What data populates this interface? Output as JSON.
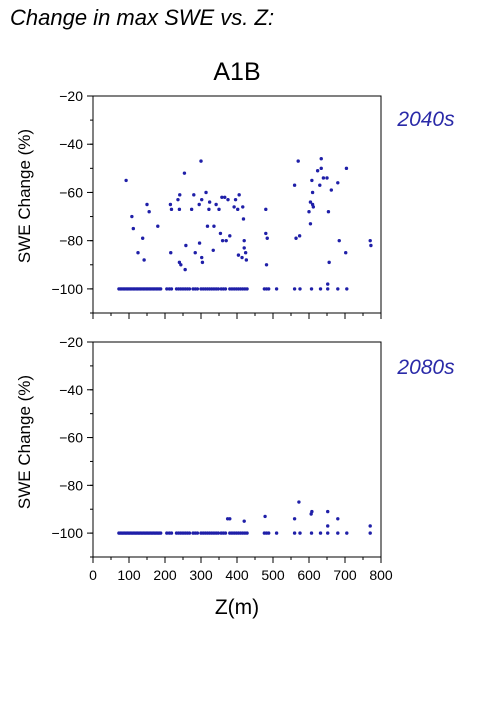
{
  "figure_title": "Change in max SWE vs. Z:",
  "scenario": "A1B",
  "colors": {
    "points": "#1f1fa8",
    "label_blue": "#2a2aa8",
    "axis": "#000000",
    "background": "#ffffff"
  },
  "chart_data": [
    {
      "type": "scatter",
      "panel_label": "2040s",
      "xlabel": "Z(m)",
      "ylabel": "SWE Change (%)",
      "xlim": [
        0,
        800
      ],
      "ylim": [
        -110,
        -20
      ],
      "xticks": [
        0,
        100,
        200,
        300,
        400,
        500,
        600,
        700,
        800
      ],
      "yticks": [
        -100,
        -80,
        -60,
        -40,
        -20
      ],
      "x_tick_labels_shown": false,
      "grid": false,
      "points": [
        [
          72,
          -100
        ],
        [
          76,
          -100
        ],
        [
          80,
          -100
        ],
        [
          84,
          -100
        ],
        [
          88,
          -100
        ],
        [
          92,
          -100
        ],
        [
          96,
          -100
        ],
        [
          100,
          -100
        ],
        [
          104,
          -100
        ],
        [
          108,
          -100
        ],
        [
          112,
          -100
        ],
        [
          116,
          -100
        ],
        [
          120,
          -100
        ],
        [
          124,
          -100
        ],
        [
          128,
          -100
        ],
        [
          132,
          -100
        ],
        [
          136,
          -100
        ],
        [
          140,
          -100
        ],
        [
          144,
          -100
        ],
        [
          148,
          -100
        ],
        [
          152,
          -100
        ],
        [
          156,
          -100
        ],
        [
          160,
          -100
        ],
        [
          164,
          -100
        ],
        [
          168,
          -100
        ],
        [
          172,
          -100
        ],
        [
          176,
          -100
        ],
        [
          180,
          -100
        ],
        [
          184,
          -100
        ],
        [
          188,
          -100
        ],
        [
          205,
          -100
        ],
        [
          212,
          -100
        ],
        [
          218,
          -100
        ],
        [
          232,
          -100
        ],
        [
          238,
          -100
        ],
        [
          244,
          -100
        ],
        [
          250,
          -100
        ],
        [
          256,
          -100
        ],
        [
          262,
          -100
        ],
        [
          268,
          -100
        ],
        [
          278,
          -100
        ],
        [
          284,
          -100
        ],
        [
          290,
          -100
        ],
        [
          300,
          -100
        ],
        [
          306,
          -100
        ],
        [
          312,
          -100
        ],
        [
          318,
          -100
        ],
        [
          324,
          -100
        ],
        [
          330,
          -100
        ],
        [
          336,
          -100
        ],
        [
          342,
          -100
        ],
        [
          348,
          -100
        ],
        [
          356,
          -100
        ],
        [
          362,
          -100
        ],
        [
          368,
          -100
        ],
        [
          380,
          -100
        ],
        [
          386,
          -100
        ],
        [
          392,
          -100
        ],
        [
          398,
          -100
        ],
        [
          404,
          -100
        ],
        [
          410,
          -100
        ],
        [
          416,
          -100
        ],
        [
          422,
          -100
        ],
        [
          428,
          -100
        ],
        [
          476,
          -100
        ],
        [
          482,
          -100
        ],
        [
          488,
          -100
        ],
        [
          510,
          -100
        ],
        [
          560,
          -100
        ],
        [
          575,
          -100
        ],
        [
          607,
          -100
        ],
        [
          632,
          -100
        ],
        [
          652,
          -100
        ],
        [
          680,
          -100
        ],
        [
          705,
          -100
        ],
        [
          92,
          -55
        ],
        [
          108,
          -70
        ],
        [
          112,
          -75
        ],
        [
          125,
          -85
        ],
        [
          138,
          -79
        ],
        [
          142,
          -88
        ],
        [
          150,
          -65
        ],
        [
          156,
          -68
        ],
        [
          180,
          -74
        ],
        [
          215,
          -65
        ],
        [
          218,
          -67
        ],
        [
          216,
          -85
        ],
        [
          236,
          -63
        ],
        [
          241,
          -61
        ],
        [
          240,
          -67
        ],
        [
          240,
          -89
        ],
        [
          244,
          -90
        ],
        [
          254,
          -52
        ],
        [
          258,
          -82
        ],
        [
          256,
          -92
        ],
        [
          274,
          -67
        ],
        [
          280,
          -61
        ],
        [
          284,
          -85
        ],
        [
          295,
          -65
        ],
        [
          296,
          -81
        ],
        [
          300,
          -47
        ],
        [
          302,
          -63
        ],
        [
          302,
          -87
        ],
        [
          304,
          -89
        ],
        [
          314,
          -60
        ],
        [
          318,
          -74
        ],
        [
          322,
          -67
        ],
        [
          324,
          -64
        ],
        [
          334,
          -84
        ],
        [
          336,
          -74
        ],
        [
          342,
          -65
        ],
        [
          350,
          -67
        ],
        [
          354,
          -77
        ],
        [
          358,
          -62
        ],
        [
          360,
          -80
        ],
        [
          366,
          -62
        ],
        [
          370,
          -80
        ],
        [
          375,
          -63
        ],
        [
          380,
          -78
        ],
        [
          392,
          -66
        ],
        [
          396,
          -63
        ],
        [
          402,
          -67
        ],
        [
          404,
          -86
        ],
        [
          406,
          -61
        ],
        [
          414,
          -87
        ],
        [
          416,
          -66
        ],
        [
          418,
          -71
        ],
        [
          420,
          -80
        ],
        [
          420,
          -83
        ],
        [
          424,
          -85
        ],
        [
          426,
          -88
        ],
        [
          480,
          -67
        ],
        [
          480,
          -77
        ],
        [
          482,
          -90
        ],
        [
          484,
          -79
        ],
        [
          560,
          -57
        ],
        [
          564,
          -79
        ],
        [
          570,
          -47
        ],
        [
          574,
          -78
        ],
        [
          600,
          -68
        ],
        [
          604,
          -64
        ],
        [
          604,
          -73
        ],
        [
          608,
          -55
        ],
        [
          610,
          -65
        ],
        [
          610,
          -60
        ],
        [
          612,
          -66
        ],
        [
          624,
          -51
        ],
        [
          630,
          -57
        ],
        [
          634,
          -46
        ],
        [
          634,
          -50
        ],
        [
          640,
          -54
        ],
        [
          650,
          -54
        ],
        [
          652,
          -98
        ],
        [
          654,
          -68
        ],
        [
          656,
          -89
        ],
        [
          662,
          -59
        ],
        [
          680,
          -56
        ],
        [
          684,
          -80
        ],
        [
          702,
          -85
        ],
        [
          704,
          -50
        ],
        [
          770,
          -80
        ],
        [
          772,
          -82
        ]
      ]
    },
    {
      "type": "scatter",
      "panel_label": "2080s",
      "xlabel": "Z(m)",
      "ylabel": "SWE Change (%)",
      "xlim": [
        0,
        800
      ],
      "ylim": [
        -110,
        -20
      ],
      "xticks": [
        0,
        100,
        200,
        300,
        400,
        500,
        600,
        700,
        800
      ],
      "yticks": [
        -100,
        -80,
        -60,
        -40,
        -20
      ],
      "grid": false,
      "points": [
        [
          72,
          -100
        ],
        [
          76,
          -100
        ],
        [
          80,
          -100
        ],
        [
          84,
          -100
        ],
        [
          88,
          -100
        ],
        [
          92,
          -100
        ],
        [
          96,
          -100
        ],
        [
          100,
          -100
        ],
        [
          104,
          -100
        ],
        [
          108,
          -100
        ],
        [
          112,
          -100
        ],
        [
          116,
          -100
        ],
        [
          120,
          -100
        ],
        [
          124,
          -100
        ],
        [
          128,
          -100
        ],
        [
          132,
          -100
        ],
        [
          136,
          -100
        ],
        [
          140,
          -100
        ],
        [
          144,
          -100
        ],
        [
          148,
          -100
        ],
        [
          152,
          -100
        ],
        [
          156,
          -100
        ],
        [
          160,
          -100
        ],
        [
          164,
          -100
        ],
        [
          168,
          -100
        ],
        [
          172,
          -100
        ],
        [
          176,
          -100
        ],
        [
          180,
          -100
        ],
        [
          184,
          -100
        ],
        [
          188,
          -100
        ],
        [
          205,
          -100
        ],
        [
          212,
          -100
        ],
        [
          218,
          -100
        ],
        [
          232,
          -100
        ],
        [
          238,
          -100
        ],
        [
          244,
          -100
        ],
        [
          250,
          -100
        ],
        [
          256,
          -100
        ],
        [
          262,
          -100
        ],
        [
          268,
          -100
        ],
        [
          278,
          -100
        ],
        [
          284,
          -100
        ],
        [
          290,
          -100
        ],
        [
          300,
          -100
        ],
        [
          306,
          -100
        ],
        [
          312,
          -100
        ],
        [
          318,
          -100
        ],
        [
          324,
          -100
        ],
        [
          330,
          -100
        ],
        [
          336,
          -100
        ],
        [
          342,
          -100
        ],
        [
          348,
          -100
        ],
        [
          356,
          -100
        ],
        [
          362,
          -100
        ],
        [
          368,
          -100
        ],
        [
          380,
          -100
        ],
        [
          386,
          -100
        ],
        [
          392,
          -100
        ],
        [
          398,
          -100
        ],
        [
          404,
          -100
        ],
        [
          410,
          -100
        ],
        [
          416,
          -100
        ],
        [
          422,
          -100
        ],
        [
          428,
          -100
        ],
        [
          476,
          -100
        ],
        [
          482,
          -100
        ],
        [
          488,
          -100
        ],
        [
          510,
          -100
        ],
        [
          560,
          -100
        ],
        [
          575,
          -100
        ],
        [
          607,
          -100
        ],
        [
          632,
          -100
        ],
        [
          652,
          -100
        ],
        [
          680,
          -100
        ],
        [
          705,
          -100
        ],
        [
          770,
          -100
        ],
        [
          374,
          -94
        ],
        [
          380,
          -94
        ],
        [
          420,
          -95
        ],
        [
          478,
          -93
        ],
        [
          560,
          -94
        ],
        [
          572,
          -87
        ],
        [
          606,
          -92
        ],
        [
          608,
          -91
        ],
        [
          652,
          -91
        ],
        [
          652,
          -97
        ],
        [
          680,
          -94
        ],
        [
          770,
          -97
        ]
      ]
    }
  ]
}
